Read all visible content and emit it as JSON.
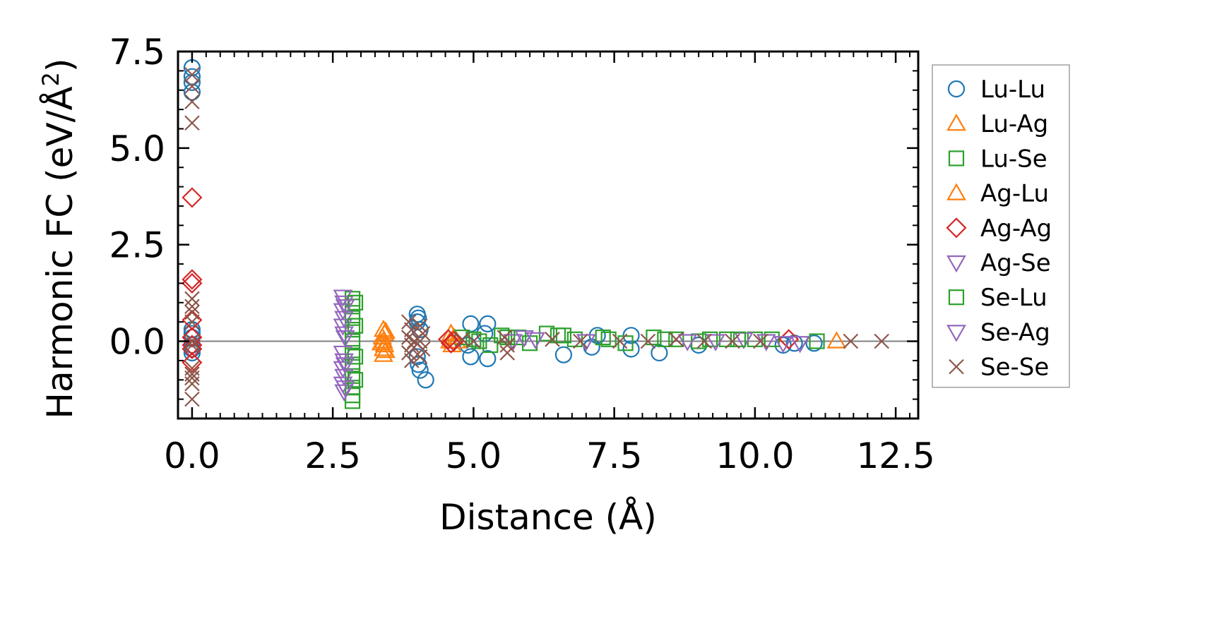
{
  "chart_data": {
    "type": "scatter",
    "title": "",
    "xlabel": "Distance (Å)",
    "ylabel": "Harmonic FC (eV/Å²)",
    "ylabel_parts": {
      "main": "Harmonic FC (eV/Å",
      "sup": "2",
      "end": ")"
    },
    "xlim": [
      -0.25,
      12.9
    ],
    "ylim": [
      -2.0,
      7.5
    ],
    "xticks": [
      0.0,
      2.5,
      5.0,
      7.5,
      10.0,
      12.5
    ],
    "xtick_labels": [
      "0.0",
      "2.5",
      "5.0",
      "7.5",
      "10.0",
      "12.5"
    ],
    "yticks": [
      0.0,
      2.5,
      5.0,
      7.5
    ],
    "ytick_labels": [
      "0.0",
      "2.5",
      "5.0",
      "7.5"
    ],
    "reference_line_y": 0.0,
    "legend_position": "outside-right",
    "series": [
      {
        "name": "Lu-Lu",
        "marker": "circle",
        "color": "#1f77b4",
        "points": [
          [
            0,
            7.08
          ],
          [
            0,
            6.85
          ],
          [
            0,
            6.7
          ],
          [
            0,
            6.45
          ],
          [
            0,
            0.3
          ],
          [
            0,
            0.2
          ],
          [
            0,
            0.1
          ],
          [
            0,
            -0.1
          ],
          [
            0,
            -0.2
          ],
          [
            0,
            -0.3
          ],
          [
            4.0,
            0.7
          ],
          [
            4.02,
            0.6
          ],
          [
            4.0,
            0.5
          ],
          [
            4.05,
            0.3
          ],
          [
            4.0,
            -0.4
          ],
          [
            4.02,
            -0.6
          ],
          [
            4.05,
            -0.75
          ],
          [
            4.15,
            -1.0
          ],
          [
            4.95,
            0.45
          ],
          [
            5.25,
            0.45
          ],
          [
            4.95,
            -0.4
          ],
          [
            5.25,
            -0.45
          ],
          [
            4.9,
            -0.1
          ],
          [
            5.2,
            0.2
          ],
          [
            6.6,
            -0.35
          ],
          [
            7.1,
            -0.15
          ],
          [
            7.2,
            0.15
          ],
          [
            7.8,
            0.15
          ],
          [
            7.8,
            -0.2
          ],
          [
            8.3,
            -0.3
          ],
          [
            9.0,
            -0.1
          ],
          [
            10.5,
            -0.1
          ],
          [
            11.05,
            -0.05
          ],
          [
            10.7,
            -0.05
          ]
        ]
      },
      {
        "name": "Lu-Ag",
        "marker": "triangle-up",
        "color": "#ff7f0e",
        "points": [
          [
            3.4,
            0.3
          ],
          [
            3.42,
            0.2
          ],
          [
            3.38,
            0.1
          ],
          [
            3.4,
            0.0
          ],
          [
            3.42,
            -0.1
          ],
          [
            3.4,
            -0.2
          ],
          [
            3.4,
            -0.35
          ],
          [
            4.6,
            0.2
          ],
          [
            4.65,
            0.1
          ],
          [
            4.7,
            0.0
          ],
          [
            4.62,
            -0.1
          ],
          [
            11.45,
            0.0
          ]
        ]
      },
      {
        "name": "Lu-Se",
        "marker": "square",
        "color": "#2ca02c",
        "points": [
          [
            2.85,
            1.1
          ],
          [
            2.85,
            0.9
          ],
          [
            2.85,
            0.6
          ],
          [
            2.85,
            0.3
          ],
          [
            2.85,
            0.0
          ],
          [
            2.85,
            -0.3
          ],
          [
            2.85,
            -0.6
          ],
          [
            2.85,
            -0.9
          ],
          [
            2.85,
            -1.2
          ],
          [
            2.85,
            -1.4
          ],
          [
            2.85,
            -1.55
          ],
          [
            4.8,
            0.1
          ],
          [
            5.0,
            0.05
          ],
          [
            5.3,
            -0.1
          ],
          [
            5.5,
            0.15
          ],
          [
            5.8,
            0.1
          ],
          [
            6.0,
            -0.05
          ],
          [
            6.3,
            0.2
          ],
          [
            6.5,
            0.15
          ],
          [
            6.8,
            0.05
          ],
          [
            7.3,
            0.1
          ],
          [
            7.7,
            -0.05
          ],
          [
            8.2,
            0.1
          ],
          [
            8.6,
            0.05
          ],
          [
            9.0,
            0.0
          ],
          [
            9.5,
            0.05
          ],
          [
            10.0,
            0.05
          ],
          [
            10.3,
            0.05
          ],
          [
            11.1,
            0.0
          ]
        ]
      },
      {
        "name": "Ag-Lu",
        "marker": "triangle-up",
        "color": "#ff7f0e",
        "points": [
          [
            3.44,
            0.25
          ],
          [
            3.36,
            -0.05
          ],
          [
            3.44,
            -0.25
          ],
          [
            4.58,
            0.0
          ]
        ]
      },
      {
        "name": "Ag-Ag",
        "marker": "diamond",
        "color": "#d62728",
        "points": [
          [
            0,
            3.72
          ],
          [
            0,
            1.6
          ],
          [
            0,
            1.5
          ],
          [
            0,
            0.55
          ],
          [
            0,
            0.1
          ],
          [
            0,
            -0.1
          ],
          [
            0,
            -0.2
          ],
          [
            0,
            -0.55
          ],
          [
            4.55,
            0.05
          ],
          [
            4.6,
            -0.05
          ],
          [
            4.65,
            0.0
          ],
          [
            10.6,
            0.05
          ]
        ]
      },
      {
        "name": "Ag-Se",
        "marker": "triangle-down",
        "color": "#9467bd",
        "points": [
          [
            2.68,
            1.15
          ],
          [
            2.7,
            1.0
          ],
          [
            2.68,
            0.8
          ],
          [
            2.7,
            0.6
          ],
          [
            2.68,
            0.4
          ],
          [
            2.7,
            0.2
          ],
          [
            2.68,
            -0.3
          ],
          [
            2.7,
            -0.5
          ],
          [
            2.68,
            -0.7
          ],
          [
            2.7,
            -0.9
          ],
          [
            2.68,
            -1.1
          ],
          [
            2.7,
            -1.3
          ],
          [
            5.7,
            0.0
          ],
          [
            6.1,
            0.05
          ],
          [
            8.8,
            0.0
          ],
          [
            9.8,
            0.05
          ],
          [
            10.5,
            -0.05
          ],
          [
            10.8,
            -0.05
          ]
        ]
      },
      {
        "name": "Se-Lu",
        "marker": "square",
        "color": "#2ca02c",
        "points": [
          [
            2.9,
            1.0
          ],
          [
            2.9,
            0.4
          ],
          [
            2.9,
            -0.4
          ],
          [
            2.9,
            -1.0
          ],
          [
            5.1,
            0.0
          ],
          [
            5.6,
            0.1
          ],
          [
            6.6,
            0.15
          ],
          [
            7.4,
            0.05
          ],
          [
            8.4,
            0.05
          ],
          [
            9.2,
            0.05
          ],
          [
            9.7,
            0.05
          ]
        ]
      },
      {
        "name": "Se-Ag",
        "marker": "triangle-down",
        "color": "#9467bd",
        "points": [
          [
            2.72,
            0.9
          ],
          [
            2.72,
            0.1
          ],
          [
            2.72,
            -0.6
          ],
          [
            2.72,
            -1.2
          ],
          [
            5.9,
            0.1
          ],
          [
            7.0,
            0.0
          ],
          [
            9.3,
            0.0
          ],
          [
            10.2,
            0.0
          ]
        ]
      },
      {
        "name": "Se-Se",
        "marker": "x",
        "color": "#8c564b",
        "points": [
          [
            0,
            6.9
          ],
          [
            0,
            6.6
          ],
          [
            0,
            6.2
          ],
          [
            0,
            5.65
          ],
          [
            0,
            1.1
          ],
          [
            0,
            0.9
          ],
          [
            0,
            0.75
          ],
          [
            0,
            0.5
          ],
          [
            0,
            0.0
          ],
          [
            0,
            -0.1
          ],
          [
            0,
            -0.7
          ],
          [
            0,
            -0.85
          ],
          [
            0,
            -0.95
          ],
          [
            0,
            -1.1
          ],
          [
            0,
            -1.5
          ],
          [
            3.85,
            0.5
          ],
          [
            3.9,
            0.3
          ],
          [
            3.85,
            0.1
          ],
          [
            3.9,
            -0.1
          ],
          [
            3.85,
            -0.3
          ],
          [
            3.9,
            -0.5
          ],
          [
            4.05,
            0.4
          ],
          [
            4.1,
            0.2
          ],
          [
            4.05,
            0.0
          ],
          [
            4.1,
            -0.2
          ],
          [
            4.05,
            -0.4
          ],
          [
            3.95,
            0.0
          ],
          [
            4.8,
            0.05
          ],
          [
            5.0,
            0.0
          ],
          [
            5.55,
            0.1
          ],
          [
            5.6,
            -0.1
          ],
          [
            5.6,
            -0.3
          ],
          [
            6.4,
            0.05
          ],
          [
            6.9,
            0.0
          ],
          [
            7.6,
            0.0
          ],
          [
            8.1,
            0.0
          ],
          [
            8.6,
            0.05
          ],
          [
            9.1,
            0.0
          ],
          [
            9.6,
            0.0
          ],
          [
            10.1,
            0.0
          ],
          [
            11.7,
            0.0
          ],
          [
            12.25,
            0.0
          ]
        ]
      }
    ]
  }
}
